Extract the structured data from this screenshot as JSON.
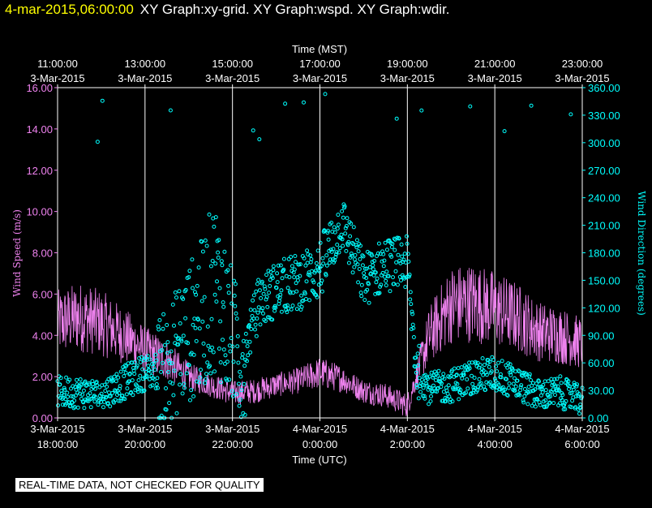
{
  "header": {
    "timestamp": "4-mar-2015,06:00:00",
    "graphs": "XY Graph:xy-grid.  XY Graph:wspd.  XY Graph:wdir."
  },
  "footer_note": "REAL-TIME DATA, NOT CHECKED FOR QUALITY",
  "colors": {
    "wspd": "#ee82ee",
    "wdir": "#00ffff",
    "grid": "#ffffff",
    "background": "#000000",
    "header": "#ffff00"
  },
  "chart_data": {
    "type": "line",
    "top_axis": {
      "title": "Time (MST)",
      "ticks": [
        {
          "hour": 0,
          "time": "11:00:00",
          "date": "3-Mar-2015"
        },
        {
          "hour": 2,
          "time": "13:00:00",
          "date": "3-Mar-2015"
        },
        {
          "hour": 4,
          "time": "15:00:00",
          "date": "3-Mar-2015"
        },
        {
          "hour": 6,
          "time": "17:00:00",
          "date": "3-Mar-2015"
        },
        {
          "hour": 8,
          "time": "19:00:00",
          "date": "3-Mar-2015"
        },
        {
          "hour": 10,
          "time": "21:00:00",
          "date": "3-Mar-2015"
        },
        {
          "hour": 12,
          "time": "23:00:00",
          "date": "3-Mar-2015"
        }
      ]
    },
    "bottom_axis": {
      "title": "Time (UTC)",
      "ticks": [
        {
          "hour": 0,
          "date": "3-Mar-2015",
          "time": "18:00:00"
        },
        {
          "hour": 2,
          "date": "3-Mar-2015",
          "time": "20:00:00"
        },
        {
          "hour": 4,
          "date": "3-Mar-2015",
          "time": "22:00:00"
        },
        {
          "hour": 6,
          "date": "4-Mar-2015",
          "time": "0:00:00"
        },
        {
          "hour": 8,
          "date": "4-Mar-2015",
          "time": "2:00:00"
        },
        {
          "hour": 10,
          "date": "4-Mar-2015",
          "time": "4:00:00"
        },
        {
          "hour": 12,
          "date": "4-Mar-2015",
          "time": "6:00:00"
        }
      ]
    },
    "xlim": [
      0,
      12
    ],
    "left_axis": {
      "label": "Wind Speed (m/s)",
      "ylim": [
        0,
        16
      ],
      "ticks": [
        "0.00",
        "2.00",
        "4.00",
        "6.00",
        "8.00",
        "10.00",
        "12.00",
        "14.00",
        "16.00"
      ]
    },
    "right_axis": {
      "label": "Wind Direction (degrees)",
      "ylim": [
        0,
        360
      ],
      "ticks": [
        "0.00",
        "30.00",
        "60.00",
        "90.00",
        "120.00",
        "150.00",
        "180.00",
        "210.00",
        "240.00",
        "270.00",
        "300.00",
        "330.00",
        "360.00"
      ]
    },
    "grid": true,
    "series": [
      {
        "key": "wspd",
        "style": "line",
        "axis": "left",
        "x": [
          0,
          0.5,
          1,
          1.5,
          2,
          2.5,
          3,
          3.5,
          4,
          4.5,
          5,
          5.5,
          6,
          6.5,
          7,
          7.5,
          8,
          8.5,
          9,
          9.5,
          10,
          10.5,
          11,
          11.5,
          12
        ],
        "y": [
          4.6,
          4.9,
          4.6,
          4.0,
          3.3,
          2.8,
          2.0,
          1.6,
          1.2,
          1.3,
          1.6,
          1.8,
          2.2,
          1.9,
          1.3,
          1.1,
          0.6,
          4.0,
          5.5,
          5.6,
          5.3,
          4.9,
          4.2,
          4.0,
          3.6
        ]
      },
      {
        "key": "wdir",
        "style": "scatter",
        "axis": "right",
        "x": [
          0,
          0.5,
          1,
          1.5,
          2,
          2.5,
          2.8,
          3.3,
          3.6,
          3.9,
          4.2,
          4.6,
          5,
          5.5,
          6,
          6.3,
          6.5,
          7,
          7.5,
          8,
          8.2,
          8.5,
          9,
          9.5,
          10,
          10.5,
          11,
          11.5,
          12
        ],
        "y": [
          28,
          28,
          25,
          38,
          50,
          52,
          80,
          112,
          148,
          100,
          60,
          125,
          140,
          148,
          162,
          190,
          215,
          150,
          168,
          168,
          55,
          32,
          35,
          45,
          48,
          38,
          25,
          28,
          18
        ]
      }
    ]
  }
}
